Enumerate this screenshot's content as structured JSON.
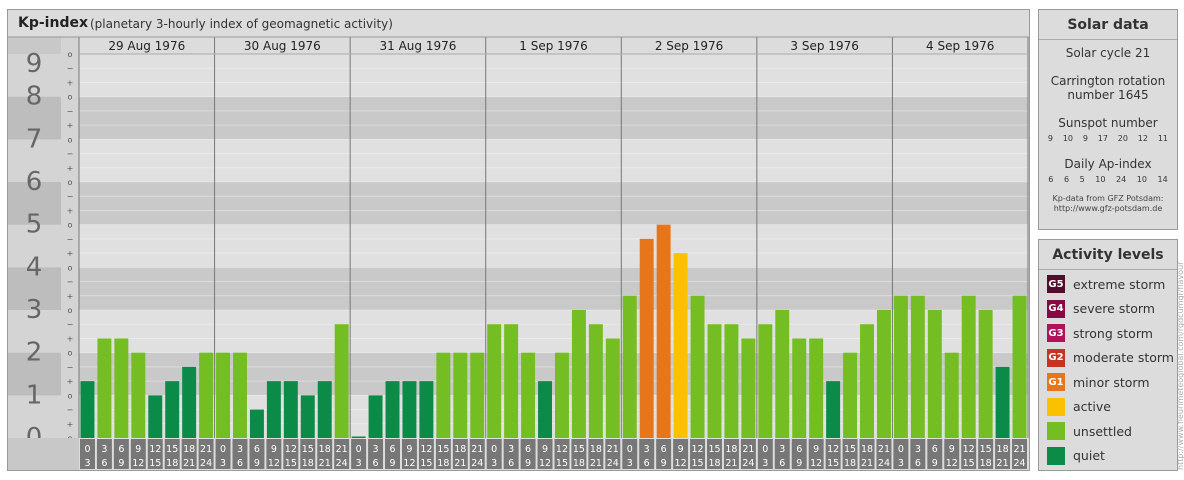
{
  "header": {
    "title": "Kp-index",
    "subtitle": "(planetary 3-hourly index of geomagnetic activity)"
  },
  "chart_data": {
    "type": "bar",
    "title": "Kp-index",
    "subtitle": "(planetary 3-hourly index of geomagnetic activity)",
    "ylim": [
      0,
      9
    ],
    "y_ticks": [
      "0",
      "1",
      "2",
      "3",
      "4",
      "5",
      "6",
      "7",
      "8",
      "9"
    ],
    "y_minor_ticks": [
      "o",
      "+",
      "−"
    ],
    "days": [
      "29 Aug 1976",
      "30 Aug 1976",
      "31 Aug 1976",
      "1 Sep 1976",
      "2 Sep 1976",
      "3 Sep 1976",
      "4 Sep 1976"
    ],
    "hour_starts": [
      "0",
      "3",
      "6",
      "9",
      "12",
      "15",
      "18",
      "21"
    ],
    "hour_ends": [
      "3",
      "6",
      "9",
      "12",
      "15",
      "18",
      "21",
      "24"
    ],
    "series": [
      {
        "values": [
          1.333,
          2.333,
          2.333,
          2.0,
          1.0,
          1.333,
          1.667,
          2.0,
          2.0,
          2.0,
          0.667,
          1.333,
          1.333,
          1.0,
          1.333,
          2.667,
          0.0,
          1.0,
          1.333,
          1.333,
          1.333,
          2.0,
          2.0,
          2.0,
          2.667,
          2.667,
          2.0,
          1.333,
          2.0,
          3.0,
          2.667,
          2.333,
          3.333,
          4.667,
          5.0,
          4.333,
          3.333,
          2.667,
          2.667,
          2.333,
          2.667,
          3.0,
          2.333,
          2.333,
          1.333,
          2.0,
          2.667,
          3.0,
          3.333,
          3.333,
          3.0,
          2.0,
          3.333,
          3.0,
          1.667,
          3.333
        ]
      }
    ],
    "level_colors": {
      "quiet": "#0c8a47",
      "unsettled": "#74bd23",
      "active": "#fbc100",
      "minor_storm": "#e6761c",
      "moderate_storm": "#c5341f",
      "strong_storm": "#b0125a",
      "severe_storm": "#860a45",
      "extreme_storm": "#520d2c"
    },
    "grid": true
  },
  "solar": {
    "title": "Solar data",
    "cycle": "Solar cycle 21",
    "carrington_line1": "Carrington rotation",
    "carrington_line2": "number 1645",
    "sunspot_label": "Sunspot number",
    "sunspot_values": [
      "9",
      "10",
      "9",
      "17",
      "20",
      "12",
      "11"
    ],
    "ap_label": "Daily Ap-index",
    "ap_values": [
      "6",
      "6",
      "5",
      "10",
      "24",
      "10",
      "14"
    ],
    "credit_line1": "Kp-data from GFZ Potsdam:",
    "credit_line2": "http://www.gfz-potsdam.de"
  },
  "activity": {
    "title": "Activity levels",
    "items": [
      {
        "badge": "G5",
        "label": "extreme storm",
        "color": "#520d2c"
      },
      {
        "badge": "G4",
        "label": "severe storm",
        "color": "#860a45"
      },
      {
        "badge": "G3",
        "label": "strong storm",
        "color": "#b0125a"
      },
      {
        "badge": "G2",
        "label": "moderate storm",
        "color": "#c5341f"
      },
      {
        "badge": "G1",
        "label": "minor storm",
        "color": "#e6761c"
      },
      {
        "badge": "",
        "label": "active",
        "color": "#fbc100"
      },
      {
        "badge": "",
        "label": "unsettled",
        "color": "#74bd23"
      },
      {
        "badge": "",
        "label": "quiet",
        "color": "#0c8a47"
      }
    ]
  },
  "watermark": "http://www.fleurimeteoglobal.com/rgdcumgr/flavour"
}
